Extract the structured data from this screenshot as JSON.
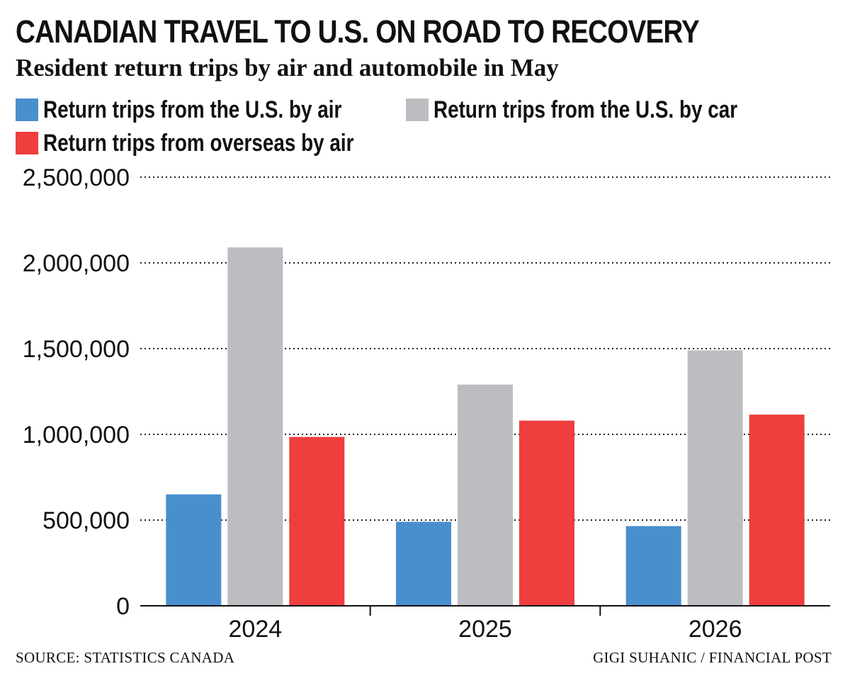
{
  "header": {
    "title": "CANADIAN TRAVEL TO U.S. ON ROAD TO RECOVERY",
    "subtitle": "Resident return trips by air and automobile in May"
  },
  "legend": {
    "items": [
      {
        "label": "Return trips from the U.S. by air",
        "color": "#4a8fcd"
      },
      {
        "label": "Return trips from the U.S. by car",
        "color": "#bcbdc0"
      },
      {
        "label": "Return trips from overseas by air",
        "color": "#ee3e3e"
      }
    ]
  },
  "footer": {
    "source": "SOURCE: STATISTICS CANADA",
    "credit": "GIGI SUHANIC / FINANCIAL POST"
  },
  "chart_data": {
    "type": "bar",
    "title": "CANADIAN TRAVEL TO U.S. ON ROAD TO RECOVERY",
    "subtitle": "Resident return trips by air and automobile in May",
    "categories": [
      "2024",
      "2025",
      "2026"
    ],
    "series": [
      {
        "name": "Return trips from the U.S. by air",
        "color": "#4a8fcd",
        "values": [
          650000,
          490000,
          465000
        ]
      },
      {
        "name": "Return trips from the U.S. by car",
        "color": "#bcbdc0",
        "values": [
          2090000,
          1290000,
          1490000
        ]
      },
      {
        "name": "Return trips from overseas by air",
        "color": "#ee3e3e",
        "values": [
          985000,
          1080000,
          1115000
        ]
      }
    ],
    "ylim": [
      0,
      2500000
    ],
    "yticks": [
      0,
      500000,
      1000000,
      1500000,
      2000000,
      2500000
    ],
    "ytick_labels": [
      "0",
      "500,000",
      "1,000,000",
      "1,500,000",
      "2,000,000",
      "2,500,000"
    ],
    "grid": "dotted horizontal",
    "legend_position": "top-left",
    "xlabel": "",
    "ylabel": ""
  }
}
